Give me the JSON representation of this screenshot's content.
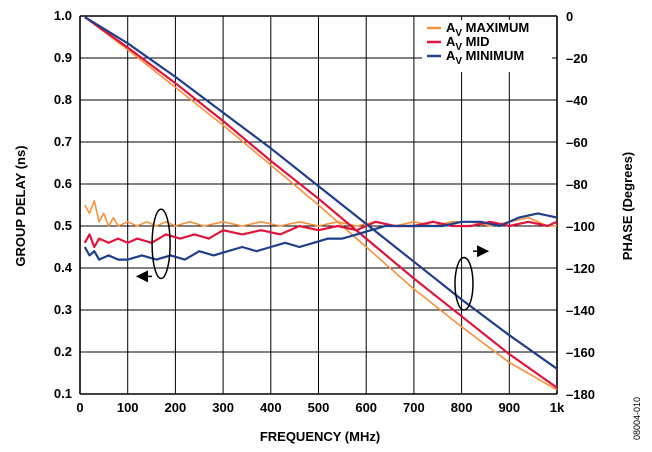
{
  "chart_data": {
    "type": "line",
    "xlabel": "FREQUENCY (MHz)",
    "ylabel_left": "GROUP DELAY (ns)",
    "ylabel_right": "PHASE (Degrees)",
    "xlim": [
      0,
      1000
    ],
    "ylim_left": [
      0.1,
      1.0
    ],
    "ylim_right": [
      -180,
      0
    ],
    "x_ticks": [
      "0",
      "100",
      "200",
      "300",
      "400",
      "500",
      "600",
      "700",
      "800",
      "900",
      "1k"
    ],
    "y_left_ticks": [
      "0.1",
      "0.2",
      "0.3",
      "0.4",
      "0.5",
      "0.6",
      "0.7",
      "0.8",
      "0.9",
      "1.0"
    ],
    "y_right_ticks": [
      "0",
      "–20",
      "–40",
      "–60",
      "–80",
      "–100",
      "–120",
      "–140",
      "–160",
      "–180"
    ],
    "grid": true,
    "legend_position": "top-right",
    "figure_id": "08004-010",
    "series": [
      {
        "name_base": "A",
        "name_sub": "V",
        "name_rest": " MAXIMUM",
        "color": "#f7923a",
        "phase": {
          "x": [
            10,
            100,
            200,
            300,
            400,
            500,
            600,
            700,
            800,
            900,
            1000
          ],
          "y": [
            -0.5,
            -16,
            -34,
            -52,
            -71,
            -90,
            -110,
            -130,
            -148,
            -165,
            -178
          ]
        },
        "delay": {
          "x": [
            10,
            20,
            30,
            40,
            50,
            60,
            70,
            80,
            100,
            120,
            140,
            160,
            180,
            200,
            230,
            260,
            300,
            340,
            380,
            420,
            460,
            500,
            540,
            580,
            620,
            660,
            700,
            740,
            780,
            820,
            860,
            900,
            940,
            980,
            1000
          ],
          "y": [
            0.55,
            0.53,
            0.56,
            0.51,
            0.53,
            0.5,
            0.52,
            0.5,
            0.51,
            0.5,
            0.51,
            0.5,
            0.51,
            0.5,
            0.51,
            0.5,
            0.51,
            0.5,
            0.51,
            0.5,
            0.51,
            0.5,
            0.51,
            0.5,
            0.51,
            0.5,
            0.51,
            0.5,
            0.51,
            0.51,
            0.5,
            0.51,
            0.52,
            0.5,
            0.5
          ]
        }
      },
      {
        "name_base": "A",
        "name_sub": "V",
        "name_rest": " MID",
        "color": "#e0143c",
        "phase": {
          "x": [
            10,
            100,
            200,
            300,
            400,
            500,
            600,
            700,
            800,
            900,
            1000
          ],
          "y": [
            -0.5,
            -15,
            -32,
            -50,
            -69,
            -87,
            -106,
            -125,
            -143,
            -161,
            -177
          ]
        },
        "delay": {
          "x": [
            10,
            20,
            30,
            40,
            60,
            80,
            100,
            120,
            150,
            180,
            210,
            240,
            270,
            300,
            340,
            380,
            420,
            460,
            500,
            540,
            580,
            620,
            660,
            700,
            740,
            780,
            820,
            860,
            900,
            940,
            980,
            1000
          ],
          "y": [
            0.46,
            0.48,
            0.45,
            0.47,
            0.46,
            0.47,
            0.46,
            0.47,
            0.46,
            0.48,
            0.47,
            0.48,
            0.47,
            0.49,
            0.48,
            0.49,
            0.48,
            0.5,
            0.49,
            0.5,
            0.49,
            0.51,
            0.5,
            0.5,
            0.51,
            0.5,
            0.5,
            0.51,
            0.5,
            0.51,
            0.5,
            0.51
          ]
        }
      },
      {
        "name_base": "A",
        "name_sub": "V",
        "name_rest": " MINIMUM",
        "color": "#1f3f8c",
        "phase": {
          "x": [
            10,
            100,
            200,
            300,
            400,
            500,
            600,
            700,
            800,
            900,
            1000
          ],
          "y": [
            -0.5,
            -13,
            -29,
            -46,
            -63,
            -81,
            -99,
            -117,
            -135,
            -152,
            -168
          ]
        },
        "delay": {
          "x": [
            10,
            20,
            30,
            40,
            60,
            80,
            100,
            130,
            160,
            190,
            220,
            250,
            280,
            310,
            340,
            370,
            400,
            430,
            460,
            490,
            520,
            550,
            580,
            610,
            640,
            680,
            720,
            760,
            800,
            840,
            880,
            920,
            960,
            1000
          ],
          "y": [
            0.45,
            0.43,
            0.44,
            0.42,
            0.43,
            0.42,
            0.42,
            0.43,
            0.42,
            0.43,
            0.42,
            0.44,
            0.43,
            0.44,
            0.45,
            0.44,
            0.45,
            0.46,
            0.45,
            0.46,
            0.47,
            0.47,
            0.48,
            0.49,
            0.5,
            0.5,
            0.5,
            0.5,
            0.51,
            0.51,
            0.5,
            0.52,
            0.53,
            0.52
          ]
        }
      }
    ],
    "annotations": [
      {
        "kind": "group-delay-ellipse",
        "x": 170,
        "y_low": 0.375,
        "y_high": 0.54,
        "arrow_to_x": 120,
        "arrow_y": 0.38,
        "axis": "left"
      },
      {
        "kind": "phase-ellipse",
        "x": 805,
        "y_low": -140,
        "y_high": -115,
        "arrow_to_x": 855,
        "arrow_y": -112,
        "axis": "right"
      }
    ]
  }
}
